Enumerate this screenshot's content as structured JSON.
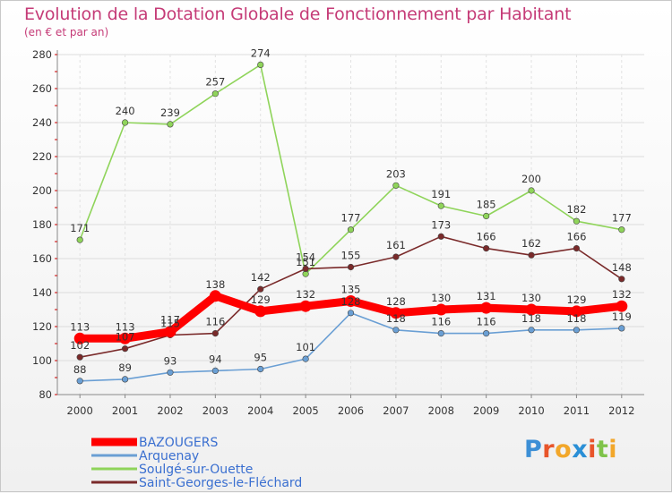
{
  "title": "Evolution de la Dotation Globale de Fonctionnement par Habitant",
  "subtitle": "(en € et par an)",
  "logo": "Proxiti",
  "chart_data": {
    "type": "line",
    "x": [
      "2000",
      "2001",
      "2002",
      "2003",
      "2004",
      "2005",
      "2006",
      "2007",
      "2008",
      "2009",
      "2010",
      "2011",
      "2012"
    ],
    "ylim": [
      80,
      280
    ],
    "yticks": [
      "80",
      "100",
      "120",
      "140",
      "160",
      "180",
      "200",
      "220",
      "240",
      "260",
      "280"
    ],
    "grid": true,
    "legend_position": "bottom-left",
    "series": [
      {
        "name": "BAZOUGERS",
        "color": "#ff0000",
        "values": [
          113,
          113,
          117,
          138,
          129,
          132,
          135,
          128,
          130,
          131,
          130,
          129,
          132
        ]
      },
      {
        "name": "Arquenay",
        "color": "#6a9fd4",
        "values": [
          88,
          89,
          93,
          94,
          95,
          101,
          128,
          118,
          116,
          116,
          118,
          118,
          119
        ]
      },
      {
        "name": "Soulgé-sur-Ouette",
        "color": "#8fd45a",
        "values": [
          171,
          240,
          239,
          257,
          274,
          151,
          177,
          203,
          191,
          185,
          200,
          182,
          177
        ]
      },
      {
        "name": "Saint-Georges-le-Fléchard",
        "color": "#7a2a2a",
        "values": [
          102,
          107,
          115,
          116,
          142,
          154,
          155,
          161,
          173,
          166,
          162,
          166,
          148
        ]
      }
    ]
  }
}
